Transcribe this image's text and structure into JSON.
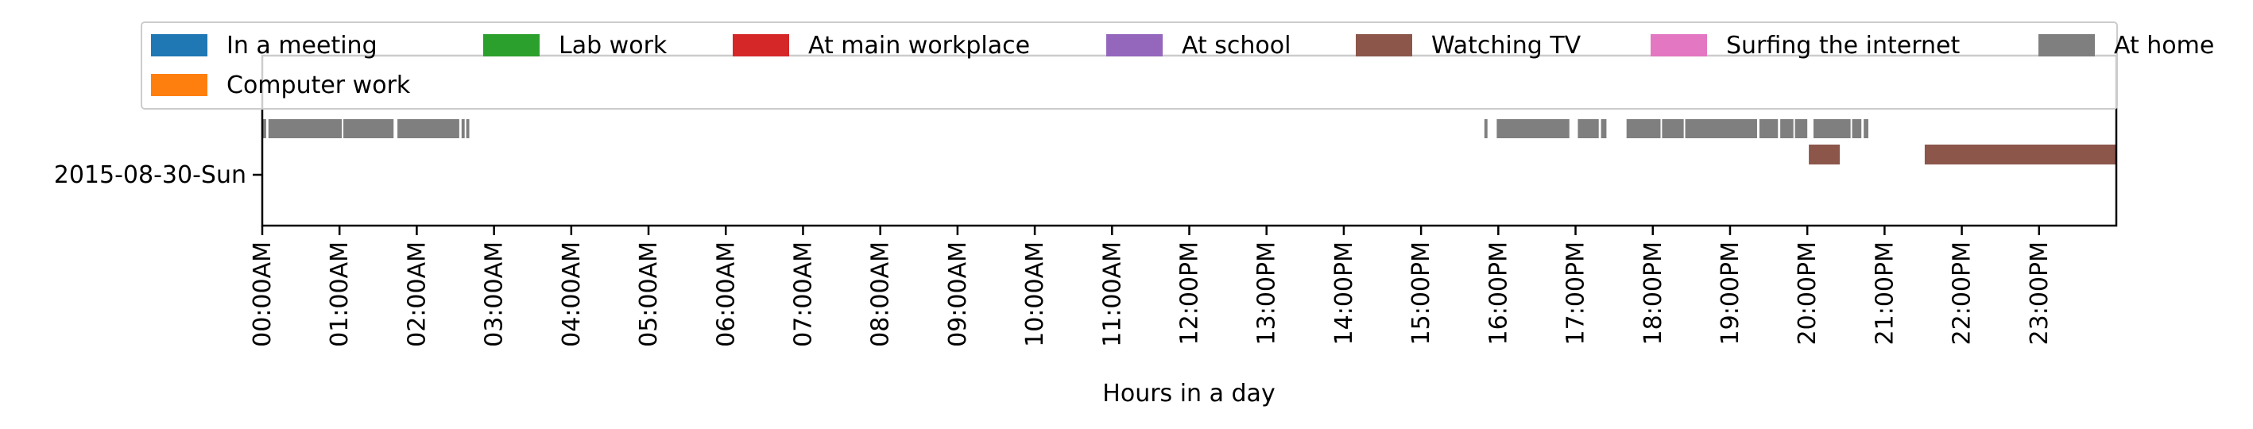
{
  "chart_data": {
    "type": "timeline",
    "title": "",
    "xlabel": "Hours in a day",
    "ylabel": "",
    "xlim_hours": [
      0,
      24
    ],
    "x_tick_labels": [
      "00:00AM",
      "01:00AM",
      "02:00AM",
      "03:00AM",
      "04:00AM",
      "05:00AM",
      "06:00AM",
      "07:00AM",
      "08:00AM",
      "09:00AM",
      "10:00AM",
      "11:00AM",
      "12:00PM",
      "13:00PM",
      "14:00PM",
      "15:00PM",
      "16:00PM",
      "17:00PM",
      "18:00PM",
      "19:00PM",
      "20:00PM",
      "21:00PM",
      "22:00PM",
      "23:00PM"
    ],
    "y_tick_labels": [
      "2015-08-30-Sun"
    ],
    "grid": false,
    "legend_position": "top",
    "legend": [
      {
        "label": "In a meeting",
        "color": "#1f77b4"
      },
      {
        "label": "Lab work",
        "color": "#2ca02c"
      },
      {
        "label": "At main workplace",
        "color": "#d62728"
      },
      {
        "label": "At school",
        "color": "#9467bd"
      },
      {
        "label": "Watching TV",
        "color": "#8c564b"
      },
      {
        "label": "Surfing the internet",
        "color": "#e377c2"
      },
      {
        "label": "At home",
        "color": "#7f7f7f"
      },
      {
        "label": "Computer work",
        "color": "#ff7f0e"
      }
    ],
    "series": [
      {
        "name": "At home",
        "color": "#7f7f7f",
        "day": "2015-08-30-Sun",
        "intervals_hours": [
          [
            0.0,
            0.05
          ],
          [
            0.08,
            1.03
          ],
          [
            1.05,
            1.7
          ],
          [
            1.75,
            2.55
          ],
          [
            2.58,
            2.62
          ],
          [
            2.64,
            2.68
          ],
          [
            15.82,
            15.86
          ],
          [
            15.98,
            16.92
          ],
          [
            17.03,
            17.3
          ],
          [
            17.33,
            17.4
          ],
          [
            17.66,
            18.1
          ],
          [
            18.12,
            18.4
          ],
          [
            18.42,
            19.35
          ],
          [
            19.38,
            19.62
          ],
          [
            19.65,
            19.82
          ],
          [
            19.84,
            20.0
          ],
          [
            20.08,
            20.56
          ],
          [
            20.58,
            20.7
          ],
          [
            20.73,
            20.79
          ]
        ]
      },
      {
        "name": "Watching TV",
        "color": "#8c564b",
        "day": "2015-08-30-Sun",
        "intervals_hours": [
          [
            20.02,
            20.42
          ],
          [
            21.52,
            24.0
          ]
        ]
      }
    ]
  }
}
